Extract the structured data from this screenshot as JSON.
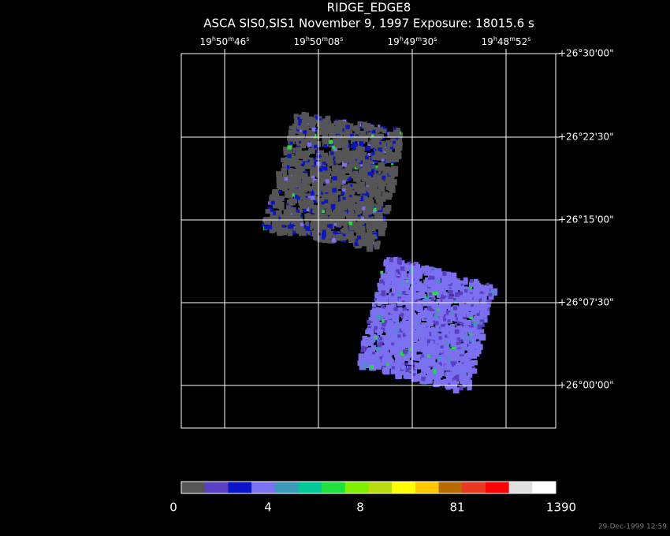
{
  "header": {
    "title": "RIDGE_EDGE8",
    "subtitle": "ASCA SIS0,SIS1 November 9, 1997 Exposure: 18015.6 s"
  },
  "ra_labels": [
    "19h50m46s",
    "19h50m08s",
    "19h49m30s",
    "19h48m52s"
  ],
  "dec_labels": [
    "+26°30'00\"",
    "+26°22'30\"",
    "+26°15'00\"",
    "+26°07'30\"",
    "+26°00'00\""
  ],
  "colorbar": {
    "colors": [
      "#555555",
      "#5a3fc0",
      "#0a14c8",
      "#7a70f0",
      "#3a9ab8",
      "#00c896",
      "#20e040",
      "#7ef000",
      "#b8dc10",
      "#ffff00",
      "#ffc800",
      "#b86a00",
      "#e83820",
      "#ff0000",
      "#e0e0e0",
      "#ffffff"
    ],
    "labels": [
      "0",
      "4",
      "8",
      "81",
      "1390"
    ]
  },
  "footer": {
    "timestamp": "29-Dec-1999 12:59"
  }
}
